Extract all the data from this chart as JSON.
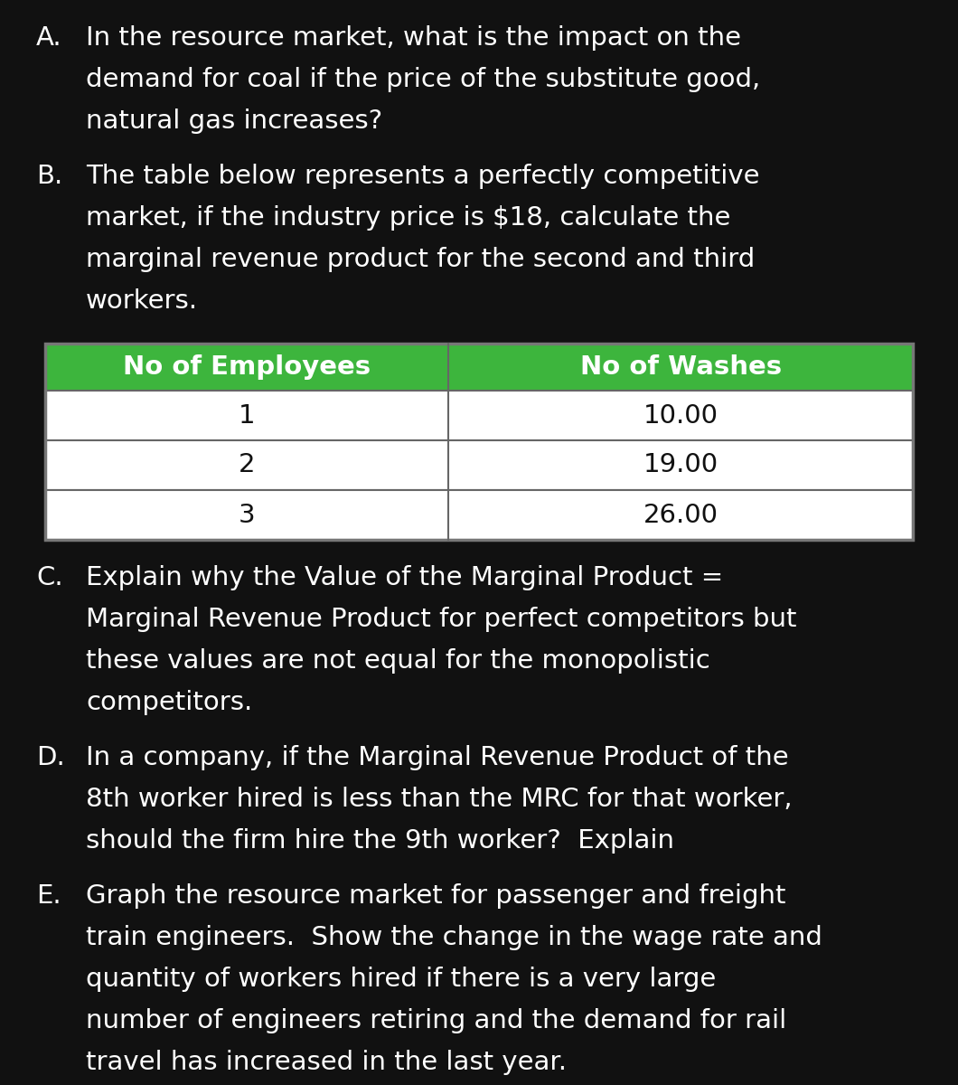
{
  "background_color": "#111111",
  "text_color": "#ffffff",
  "font_size_main": 21.0,
  "table_header_bg": "#3db53d",
  "table_header_text": "#ffffff",
  "table_body_bg": "#ffffff",
  "table_body_text": "#111111",
  "table_border_color": "#444444",
  "table_header_headers": [
    "No of Employees",
    "No of Washes"
  ],
  "table_rows": [
    [
      "1",
      "10.00"
    ],
    [
      "2",
      "19.00"
    ],
    [
      "3",
      "26.00"
    ]
  ],
  "section_A_label": "A.",
  "section_A_lines": [
    "In the resource market, what is the impact on the",
    "demand for coal if the price of the substitute good,",
    "natural gas increases?"
  ],
  "section_B_label": "B.",
  "section_B_lines": [
    "The table below represents a perfectly competitive",
    "market, if the industry price is $18, calculate the",
    "marginal revenue product for the second and third",
    "workers."
  ],
  "section_C_label": "C.",
  "section_C_lines": [
    "Explain why the Value of the Marginal Product =",
    "Marginal Revenue Product for perfect competitors but",
    "these values are not equal for the monopolistic",
    "competitors."
  ],
  "section_D_label": "D.",
  "section_D_lines": [
    "In a company, if the Marginal Revenue Product of the",
    "8th worker hired is less than the MRC for that worker,",
    "should the firm hire the 9th worker?  Explain"
  ],
  "section_E_label": "E.",
  "section_E_lines": [
    "Graph the resource market for passenger and freight",
    "train engineers.  Show the change in the wage rate and",
    "quantity of workers hired if there is a very large",
    "number of engineers retiring and the demand for rail",
    "travel has increased in the last year."
  ]
}
